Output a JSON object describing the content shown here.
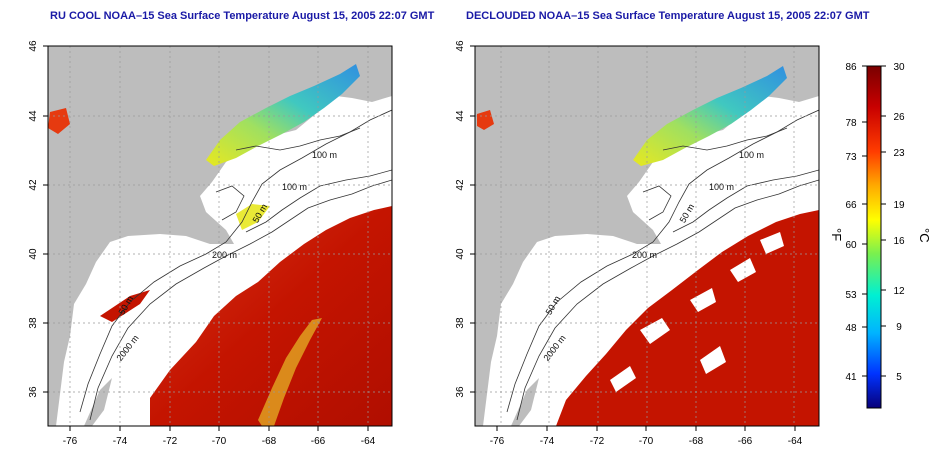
{
  "left_panel": {
    "title": "RU COOL NOAA–15 Sea Surface Temperature August 15, 2005 22:07 GMT",
    "contour_labels": [
      "100 m",
      "100 m",
      "50 m",
      "200 m",
      "50 m",
      "2000 m"
    ]
  },
  "right_panel": {
    "title": "DECLOUDED NOAA–15 Sea Surface Temperature August 15, 2005 22:07 GMT",
    "contour_labels": [
      "100 m",
      "100 m",
      "50 m",
      "200 m",
      "50 m",
      "2000 m"
    ]
  },
  "axes": {
    "x_ticks": [
      "-76",
      "-74",
      "-72",
      "-70",
      "-68",
      "-66",
      "-64"
    ],
    "y_ticks": [
      "46",
      "44",
      "42",
      "40",
      "38",
      "36"
    ]
  },
  "colorbar": {
    "f_label": "°F",
    "c_label": "°C",
    "f_ticks": [
      "86",
      "78",
      "73",
      "66",
      "60",
      "53",
      "48",
      "41"
    ],
    "c_ticks": [
      "30",
      "26",
      "23",
      "19",
      "16",
      "12",
      "9",
      "5"
    ],
    "colors": [
      "#08007a",
      "#0033ff",
      "#00b4ff",
      "#00f0d2",
      "#78f050",
      "#ffff00",
      "#ffaa00",
      "#ff3c00",
      "#c80000",
      "#7a0000"
    ]
  },
  "colors": {
    "land": "#bdbdbd",
    "water_no_data": "#ffffff",
    "title": "#1a1aa6",
    "warm": "#cc1a00",
    "cool": "#33ccaa"
  }
}
